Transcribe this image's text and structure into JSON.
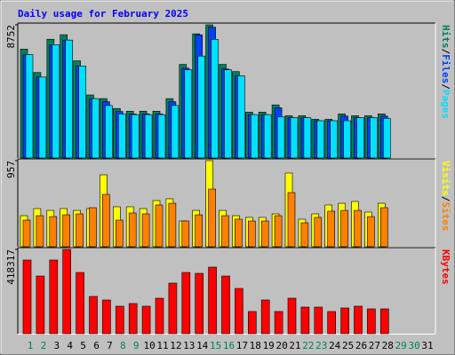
{
  "chart_data": {
    "type": "bar",
    "title": "Daily usage for February 2025",
    "categories": [
      "1",
      "2",
      "3",
      "4",
      "5",
      "6",
      "7",
      "8",
      "9",
      "10",
      "11",
      "12",
      "13",
      "14",
      "15",
      "16",
      "17",
      "18",
      "19",
      "20",
      "21",
      "22",
      "23",
      "24",
      "25",
      "26",
      "27",
      "28",
      "29",
      "30",
      "31"
    ],
    "category_colors": [
      "#00805c",
      "#00805c",
      "#000000",
      "#000000",
      "#000000",
      "#000000",
      "#000000",
      "#00805c",
      "#00805c",
      "#000000",
      "#000000",
      "#000000",
      "#000000",
      "#000000",
      "#00805c",
      "#00805c",
      "#000000",
      "#000000",
      "#000000",
      "#000000",
      "#000000",
      "#00805c",
      "#00805c",
      "#000000",
      "#000000",
      "#000000",
      "#000000",
      "#000000",
      "#00805c",
      "#00805c",
      "#000000"
    ],
    "legend_separator": "/",
    "panels": [
      {
        "ylim": [
          0,
          8752
        ],
        "yticks": [
          8752
        ],
        "series": [
          {
            "name": "Hits",
            "color": "#00805c",
            "values": [
              7156,
              5618,
              7806,
              8102,
              6387,
              4140,
              3903,
              3253,
              3075,
              3075,
              3075,
              3903,
              6150,
              8161,
              8752,
              6150,
              5677,
              3016,
              3016,
              3489,
              2780,
              2780,
              2543,
              2543,
              2898,
              2780,
              2780,
              2898,
              null,
              null,
              null
            ]
          },
          {
            "name": "Files",
            "color": "#0040ff",
            "values": [
              6800,
              5320,
              7450,
              7750,
              6050,
              3900,
              3700,
              3050,
              2900,
              2900,
              2900,
              3700,
              5900,
              8100,
              8600,
              5850,
              5400,
              2850,
              2850,
              3300,
              2650,
              2650,
              2450,
              2450,
              2750,
              2650,
              2650,
              2750,
              null,
              null,
              null
            ]
          },
          {
            "name": "Pages",
            "color": "#00e0ff",
            "values": [
              6800,
              5320,
              7450,
              7750,
              6050,
              3900,
              3450,
              2900,
              2850,
              2850,
              2850,
              3450,
              5800,
              6700,
              7800,
              5800,
              5400,
              2850,
              2850,
              2700,
              2650,
              2650,
              2450,
              2450,
              2450,
              2650,
              2650,
              2600,
              null,
              null,
              null
            ]
          }
        ]
      },
      {
        "ylim": [
          0,
          957
        ],
        "yticks": [
          957
        ],
        "series": [
          {
            "name": "Visits",
            "color": "#ffff00",
            "values": [
              345,
              424,
              404,
              424,
              404,
              424,
              799,
              444,
              444,
              424,
              513,
              533,
              286,
              404,
              957,
              404,
              345,
              326,
              326,
              365,
              819,
              306,
              365,
              464,
              483,
              503,
              385,
              483,
              null,
              null,
              null
            ]
          },
          {
            "name": "Sites",
            "color": "#ff8000",
            "values": [
              296,
              345,
              335,
              355,
              365,
              434,
              582,
              296,
              375,
              365,
              464,
              483,
              286,
              355,
              641,
              345,
              306,
              286,
              286,
              345,
              602,
              266,
              326,
              395,
              404,
              404,
              335,
              434,
              null,
              null,
              null
            ]
          }
        ]
      },
      {
        "ylim": [
          0,
          418317
        ],
        "yticks": [
          418317
        ],
        "series": [
          {
            "name": "KBytes",
            "color": "#ff0000",
            "values": [
              365500,
              286200,
              365500,
              418317,
              303800,
              184900,
              167300,
              136500,
              149700,
              136500,
              176100,
              251000,
              303800,
              299400,
              330200,
              286200,
              224600,
              110100,
              167300,
              110100,
              176100,
              132100,
              132100,
              110100,
              127700,
              136500,
              123300,
              123300,
              null,
              null,
              null
            ]
          }
        ]
      }
    ]
  }
}
